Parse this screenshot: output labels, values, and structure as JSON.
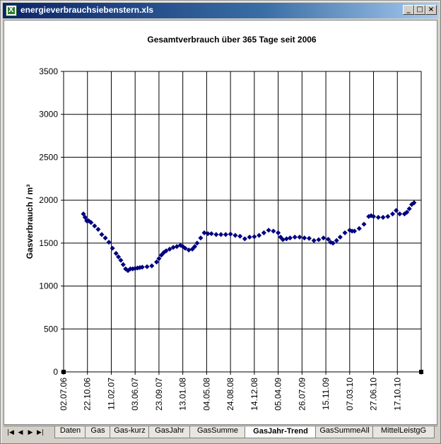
{
  "window": {
    "title": "energieverbrauchsiebenstern.xls",
    "minimize_glyph": "_",
    "restore_glyph": "□",
    "close_glyph": "×",
    "icon": "excel-icon"
  },
  "tabs": {
    "nav_first": "|◀",
    "nav_prev": "◀",
    "nav_next": "▶",
    "nav_last": "▶|",
    "items": [
      {
        "label": "Daten",
        "active": false
      },
      {
        "label": "Gas",
        "active": false
      },
      {
        "label": "Gas-kurz",
        "active": false
      },
      {
        "label": "GasJahr",
        "active": false
      },
      {
        "label": "GasSumme",
        "active": false
      },
      {
        "label": "GasJahr-Trend",
        "active": true
      },
      {
        "label": "GasSummeAll",
        "active": false
      },
      {
        "label": "MittelLeistgG",
        "active": false
      }
    ]
  },
  "chart_data": {
    "type": "scatter",
    "title": "Gesamtverbrauch über 365 Tage seit 2006",
    "xlabel": "",
    "ylabel": "Gasverbrauch / m³",
    "ylim": [
      0,
      3500
    ],
    "yticks": [
      "0",
      "500",
      "1000",
      "1500",
      "2000",
      "2500",
      "3000",
      "3500"
    ],
    "xticks": [
      "02.07.06",
      "22.10.06",
      "11.02.07",
      "03.06.07",
      "23.09.07",
      "13.01.08",
      "04.05.08",
      "24.08.08",
      "14.12.08",
      "05.04.09",
      "26.07.09",
      "15.11.09",
      "07.03.10",
      "27.06.10",
      "17.10.10"
    ],
    "xlim_ticks": [
      0,
      15
    ],
    "grid": true,
    "marker_color": "#000080",
    "series": [
      {
        "x": [
          0.83,
          0.9,
          0.97,
          1.05,
          1.15,
          1.3,
          1.45,
          1.6,
          1.75,
          1.9,
          2.05,
          2.2,
          2.3,
          2.4,
          2.5,
          2.6,
          2.7,
          2.8,
          2.9,
          3.0,
          3.1,
          3.2,
          3.3,
          3.5,
          3.7,
          3.9,
          4.0,
          4.1,
          4.2,
          4.3,
          4.45,
          4.6,
          4.75,
          4.9,
          5.0,
          5.1,
          5.25,
          5.4,
          5.5,
          5.6,
          5.75,
          5.9,
          6.05,
          6.2,
          6.4,
          6.6,
          6.8,
          7.0,
          7.2,
          7.4,
          7.6,
          7.8,
          8.0,
          8.2,
          8.4,
          8.6,
          8.8,
          9.0,
          9.1,
          9.2,
          9.35,
          9.5,
          9.7,
          9.9,
          10.1,
          10.3,
          10.5,
          10.7,
          10.9,
          11.1,
          11.2,
          11.3,
          11.45,
          11.6,
          11.8,
          12.0,
          12.1,
          12.2,
          12.4,
          12.6,
          12.8,
          12.9,
          13.0,
          13.2,
          13.4,
          13.6,
          13.8,
          13.95,
          14.1,
          14.3,
          14.4,
          14.5,
          14.6,
          14.7
        ],
        "y": [
          1840,
          1800,
          1760,
          1760,
          1740,
          1700,
          1660,
          1600,
          1560,
          1510,
          1440,
          1380,
          1340,
          1300,
          1250,
          1200,
          1180,
          1200,
          1200,
          1205,
          1210,
          1215,
          1220,
          1225,
          1235,
          1280,
          1320,
          1360,
          1390,
          1410,
          1430,
          1450,
          1460,
          1475,
          1460,
          1440,
          1420,
          1430,
          1460,
          1500,
          1560,
          1620,
          1610,
          1610,
          1600,
          1600,
          1600,
          1605,
          1590,
          1580,
          1550,
          1570,
          1575,
          1590,
          1620,
          1650,
          1640,
          1620,
          1570,
          1540,
          1550,
          1560,
          1570,
          1570,
          1560,
          1555,
          1530,
          1540,
          1560,
          1545,
          1510,
          1500,
          1530,
          1570,
          1620,
          1650,
          1640,
          1640,
          1670,
          1720,
          1810,
          1820,
          1810,
          1800,
          1800,
          1810,
          1840,
          1880,
          1840,
          1840,
          1860,
          1900,
          1950,
          1970
        ]
      }
    ]
  }
}
